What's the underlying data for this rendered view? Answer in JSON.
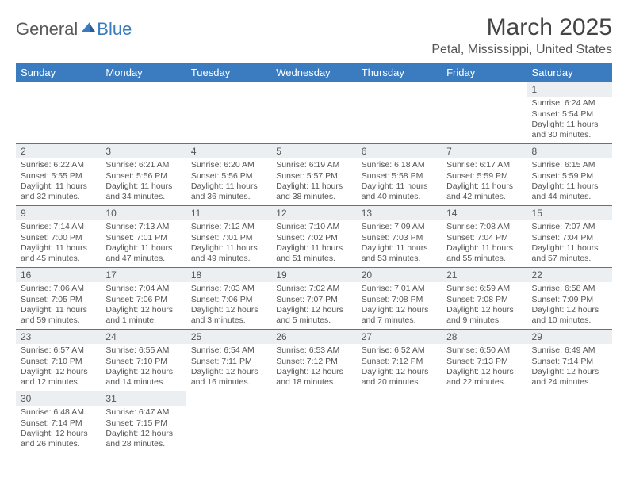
{
  "brand": {
    "part1": "General",
    "part2": "Blue"
  },
  "title": "March 2025",
  "location": "Petal, Mississippi, United States",
  "colors": {
    "header_bg": "#3b7bbf",
    "header_text": "#ffffff",
    "daynum_bg": "#eceff1",
    "border": "#3b7bbf",
    "text": "#555555",
    "background": "#ffffff"
  },
  "days": [
    "Sunday",
    "Monday",
    "Tuesday",
    "Wednesday",
    "Thursday",
    "Friday",
    "Saturday"
  ],
  "weeks": [
    [
      null,
      null,
      null,
      null,
      null,
      null,
      {
        "n": "1",
        "sr": "6:24 AM",
        "ss": "5:54 PM",
        "dh": "11",
        "dm": "30"
      }
    ],
    [
      {
        "n": "2",
        "sr": "6:22 AM",
        "ss": "5:55 PM",
        "dh": "11",
        "dm": "32"
      },
      {
        "n": "3",
        "sr": "6:21 AM",
        "ss": "5:56 PM",
        "dh": "11",
        "dm": "34"
      },
      {
        "n": "4",
        "sr": "6:20 AM",
        "ss": "5:56 PM",
        "dh": "11",
        "dm": "36"
      },
      {
        "n": "5",
        "sr": "6:19 AM",
        "ss": "5:57 PM",
        "dh": "11",
        "dm": "38"
      },
      {
        "n": "6",
        "sr": "6:18 AM",
        "ss": "5:58 PM",
        "dh": "11",
        "dm": "40"
      },
      {
        "n": "7",
        "sr": "6:17 AM",
        "ss": "5:59 PM",
        "dh": "11",
        "dm": "42"
      },
      {
        "n": "8",
        "sr": "6:15 AM",
        "ss": "5:59 PM",
        "dh": "11",
        "dm": "44"
      }
    ],
    [
      {
        "n": "9",
        "sr": "7:14 AM",
        "ss": "7:00 PM",
        "dh": "11",
        "dm": "45"
      },
      {
        "n": "10",
        "sr": "7:13 AM",
        "ss": "7:01 PM",
        "dh": "11",
        "dm": "47"
      },
      {
        "n": "11",
        "sr": "7:12 AM",
        "ss": "7:01 PM",
        "dh": "11",
        "dm": "49"
      },
      {
        "n": "12",
        "sr": "7:10 AM",
        "ss": "7:02 PM",
        "dh": "11",
        "dm": "51"
      },
      {
        "n": "13",
        "sr": "7:09 AM",
        "ss": "7:03 PM",
        "dh": "11",
        "dm": "53"
      },
      {
        "n": "14",
        "sr": "7:08 AM",
        "ss": "7:04 PM",
        "dh": "11",
        "dm": "55"
      },
      {
        "n": "15",
        "sr": "7:07 AM",
        "ss": "7:04 PM",
        "dh": "11",
        "dm": "57"
      }
    ],
    [
      {
        "n": "16",
        "sr": "7:06 AM",
        "ss": "7:05 PM",
        "dh": "11",
        "dm": "59"
      },
      {
        "n": "17",
        "sr": "7:04 AM",
        "ss": "7:06 PM",
        "dh": "12",
        "dm": "1"
      },
      {
        "n": "18",
        "sr": "7:03 AM",
        "ss": "7:06 PM",
        "dh": "12",
        "dm": "3"
      },
      {
        "n": "19",
        "sr": "7:02 AM",
        "ss": "7:07 PM",
        "dh": "12",
        "dm": "5"
      },
      {
        "n": "20",
        "sr": "7:01 AM",
        "ss": "7:08 PM",
        "dh": "12",
        "dm": "7"
      },
      {
        "n": "21",
        "sr": "6:59 AM",
        "ss": "7:08 PM",
        "dh": "12",
        "dm": "9"
      },
      {
        "n": "22",
        "sr": "6:58 AM",
        "ss": "7:09 PM",
        "dh": "12",
        "dm": "10"
      }
    ],
    [
      {
        "n": "23",
        "sr": "6:57 AM",
        "ss": "7:10 PM",
        "dh": "12",
        "dm": "12"
      },
      {
        "n": "24",
        "sr": "6:55 AM",
        "ss": "7:10 PM",
        "dh": "12",
        "dm": "14"
      },
      {
        "n": "25",
        "sr": "6:54 AM",
        "ss": "7:11 PM",
        "dh": "12",
        "dm": "16"
      },
      {
        "n": "26",
        "sr": "6:53 AM",
        "ss": "7:12 PM",
        "dh": "12",
        "dm": "18"
      },
      {
        "n": "27",
        "sr": "6:52 AM",
        "ss": "7:12 PM",
        "dh": "12",
        "dm": "20"
      },
      {
        "n": "28",
        "sr": "6:50 AM",
        "ss": "7:13 PM",
        "dh": "12",
        "dm": "22"
      },
      {
        "n": "29",
        "sr": "6:49 AM",
        "ss": "7:14 PM",
        "dh": "12",
        "dm": "24"
      }
    ],
    [
      {
        "n": "30",
        "sr": "6:48 AM",
        "ss": "7:14 PM",
        "dh": "12",
        "dm": "26"
      },
      {
        "n": "31",
        "sr": "6:47 AM",
        "ss": "7:15 PM",
        "dh": "12",
        "dm": "28"
      },
      null,
      null,
      null,
      null,
      null
    ]
  ]
}
